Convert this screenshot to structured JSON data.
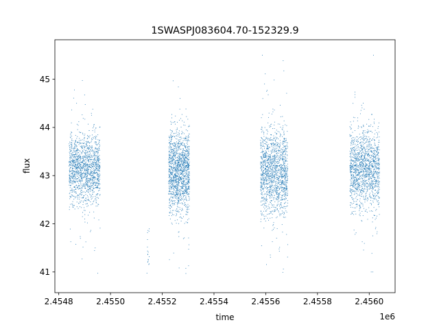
{
  "chart_data": {
    "type": "scatter",
    "title": "1SWASPJ083604.70-152329.9",
    "xlabel": "time",
    "ylabel": "flux",
    "x_offset_label": "1e6",
    "xlim": [
      2454785,
      2456100
    ],
    "ylim": [
      40.57,
      45.82
    ],
    "x_ticks": [
      2454800,
      2455000,
      2455200,
      2455400,
      2455600,
      2455800,
      2456000
    ],
    "x_tick_labels": [
      "2.4548",
      "2.4550",
      "2.4552",
      "2.4554",
      "2.4556",
      "2.4558",
      "2.4560"
    ],
    "y_ticks": [
      41,
      42,
      43,
      44,
      45
    ],
    "y_tick_labels": [
      "41",
      "42",
      "43",
      "44",
      "45"
    ],
    "grid": false,
    "legend": "none",
    "marker_color": "#1f77b4",
    "series": [
      {
        "description_of_distribution": "dense photometric point clouds in four observing seasons",
        "clusters": [
          {
            "x_range": [
              2454840,
              2454960
            ],
            "y_center": 43.15,
            "y_core_range": [
              42.3,
              44.0
            ],
            "y_extremes": [
              40.8,
              45.6
            ]
          },
          {
            "x_range": [
              2455140,
              2455150
            ],
            "y_center": 41.35,
            "y_core_range": [
              40.8,
              41.95
            ],
            "y_extremes": [
              40.8,
              41.95
            ]
          },
          {
            "x_range": [
              2455225,
              2455305
            ],
            "y_center": 43.1,
            "y_core_range": [
              42.2,
              44.1
            ],
            "y_extremes": [
              40.8,
              45.35
            ]
          },
          {
            "x_range": [
              2455580,
              2455685
            ],
            "y_center": 43.1,
            "y_core_range": [
              42.1,
              44.2
            ],
            "y_extremes": [
              40.9,
              45.5
            ]
          },
          {
            "x_range": [
              2455925,
              2456040
            ],
            "y_center": 43.15,
            "y_core_range": [
              42.2,
              44.1
            ],
            "y_extremes": [
              41.0,
              45.5
            ]
          }
        ]
      }
    ]
  }
}
